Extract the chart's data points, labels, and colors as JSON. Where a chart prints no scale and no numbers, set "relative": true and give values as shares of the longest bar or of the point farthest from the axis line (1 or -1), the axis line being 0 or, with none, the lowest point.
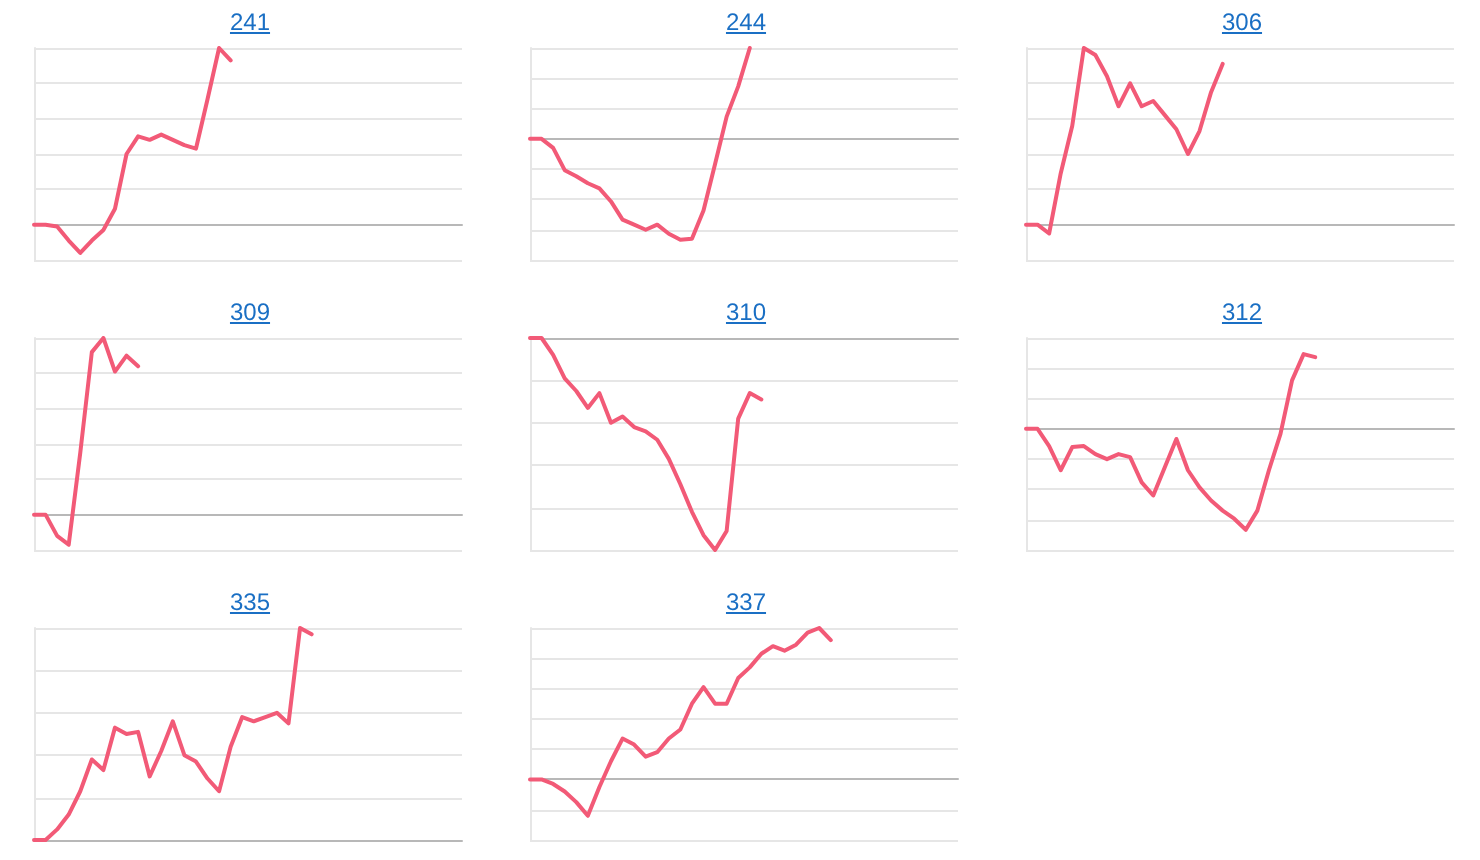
{
  "chart_data": [
    {
      "type": "line",
      "title": "241",
      "relative": true,
      "grid": "y",
      "line_style": "solid",
      "categories": [
        null,
        null,
        null,
        null,
        null,
        null,
        null,
        null,
        null,
        null,
        null,
        null,
        null,
        null,
        null,
        null,
        null,
        null,
        null,
        null,
        null,
        null,
        null,
        null,
        null,
        null,
        null,
        null,
        null,
        null,
        null,
        null,
        null,
        null,
        null,
        null,
        null,
        null
      ],
      "series": [
        {
          "color": "#f25a77",
          "values": [
            0,
            0,
            -0.01,
            -0.09,
            -0.16,
            -0.09,
            -0.03,
            0.09,
            0.4,
            0.5,
            0.48,
            0.51,
            0.48,
            0.45,
            0.43,
            0.71,
            1,
            0.93,
            null,
            null,
            null,
            null,
            null,
            null,
            null,
            null,
            null,
            null,
            null,
            null,
            null,
            null,
            null,
            null,
            null,
            null,
            null,
            null
          ]
        }
      ]
    },
    {
      "type": "line",
      "title": "244",
      "relative": true,
      "grid": "y",
      "line_style": "solid",
      "categories": [
        null,
        null,
        null,
        null,
        null,
        null,
        null,
        null,
        null,
        null,
        null,
        null,
        null,
        null,
        null,
        null,
        null,
        null,
        null,
        null,
        null,
        null,
        null,
        null,
        null,
        null,
        null,
        null,
        null,
        null,
        null,
        null,
        null,
        null,
        null,
        null,
        null,
        null
      ],
      "series": [
        {
          "color": "#f25a77",
          "values": [
            0,
            0,
            -0.09,
            -0.31,
            -0.37,
            -0.44,
            -0.49,
            -0.62,
            -0.8,
            -0.85,
            -0.9,
            -0.85,
            -0.94,
            -1,
            -0.99,
            -0.71,
            -0.25,
            0.22,
            0.52,
            0.9,
            null,
            null,
            null,
            null,
            null,
            null,
            null,
            null,
            null,
            null,
            null,
            null,
            null,
            null,
            null,
            null,
            null,
            null
          ]
        }
      ]
    },
    {
      "type": "line",
      "title": "306",
      "relative": true,
      "grid": "y",
      "line_style": "solid",
      "categories": [
        null,
        null,
        null,
        null,
        null,
        null,
        null,
        null,
        null,
        null,
        null,
        null,
        null,
        null,
        null,
        null,
        null,
        null,
        null,
        null,
        null,
        null,
        null,
        null,
        null,
        null,
        null,
        null,
        null,
        null,
        null,
        null,
        null,
        null,
        null,
        null,
        null,
        null
      ],
      "series": [
        {
          "color": "#f25a77",
          "values": [
            0,
            0,
            -0.05,
            0.29,
            0.56,
            1,
            0.96,
            0.84,
            0.67,
            0.8,
            0.67,
            0.7,
            0.62,
            0.54,
            0.4,
            0.53,
            0.75,
            0.91,
            null,
            null,
            null,
            null,
            null,
            null,
            null,
            null,
            null,
            null,
            null,
            null,
            null,
            null,
            null,
            null,
            null,
            null,
            null,
            null
          ]
        }
      ]
    },
    {
      "type": "line",
      "title": "309",
      "relative": true,
      "grid": "y",
      "line_style": "solid",
      "categories": [
        null,
        null,
        null,
        null,
        null,
        null,
        null,
        null,
        null,
        null,
        null,
        null,
        null,
        null,
        null,
        null,
        null,
        null,
        null,
        null,
        null,
        null,
        null,
        null,
        null,
        null,
        null,
        null,
        null,
        null,
        null,
        null,
        null,
        null,
        null,
        null,
        null,
        null
      ],
      "series": [
        {
          "color": "#f25a77",
          "values": [
            0,
            0,
            -0.12,
            -0.17,
            0.35,
            0.92,
            1,
            0.81,
            0.9,
            0.84,
            null,
            null,
            null,
            null,
            null,
            null,
            null,
            null,
            null,
            null,
            null,
            null,
            null,
            null,
            null,
            null,
            null,
            null,
            null,
            null,
            null,
            null,
            null,
            null,
            null,
            null,
            null,
            null
          ]
        }
      ]
    },
    {
      "type": "line",
      "title": "310",
      "relative": true,
      "grid": "y",
      "line_style": "solid",
      "categories": [
        null,
        null,
        null,
        null,
        null,
        null,
        null,
        null,
        null,
        null,
        null,
        null,
        null,
        null,
        null,
        null,
        null,
        null,
        null,
        null,
        null,
        null,
        null,
        null,
        null,
        null,
        null,
        null,
        null,
        null,
        null,
        null,
        null,
        null,
        null,
        null,
        null,
        null
      ],
      "series": [
        {
          "color": "#f25a77",
          "values": [
            0,
            0,
            -0.08,
            -0.19,
            -0.25,
            -0.33,
            -0.26,
            -0.4,
            -0.37,
            -0.42,
            -0.44,
            -0.48,
            -0.57,
            -0.69,
            -0.82,
            -0.93,
            -1,
            -0.91,
            -0.38,
            -0.26,
            -0.29,
            null,
            null,
            null,
            null,
            null,
            null,
            null,
            null,
            null,
            null,
            null,
            null,
            null,
            null,
            null,
            null,
            null
          ]
        }
      ]
    },
    {
      "type": "line",
      "title": "312",
      "relative": true,
      "grid": "y",
      "line_style": "solid",
      "categories": [
        null,
        null,
        null,
        null,
        null,
        null,
        null,
        null,
        null,
        null,
        null,
        null,
        null,
        null,
        null,
        null,
        null,
        null,
        null,
        null,
        null,
        null,
        null,
        null,
        null,
        null,
        null,
        null,
        null,
        null,
        null,
        null,
        null,
        null,
        null,
        null,
        null,
        null
      ],
      "series": [
        {
          "color": "#f25a77",
          "values": [
            0,
            0,
            -0.17,
            -0.41,
            -0.18,
            -0.17,
            -0.25,
            -0.3,
            -0.25,
            -0.28,
            -0.53,
            -0.66,
            -0.38,
            -0.1,
            -0.41,
            -0.58,
            -0.71,
            -0.81,
            -0.89,
            -1,
            -0.81,
            -0.41,
            -0.05,
            0.48,
            0.74,
            0.71,
            null,
            null,
            null,
            null,
            null,
            null,
            null,
            null,
            null,
            null,
            null,
            null
          ]
        }
      ]
    },
    {
      "type": "line",
      "title": "335",
      "relative": true,
      "grid": "y",
      "line_style": "solid",
      "categories": [
        null,
        null,
        null,
        null,
        null,
        null,
        null,
        null,
        null,
        null,
        null,
        null,
        null,
        null,
        null,
        null,
        null,
        null,
        null,
        null,
        null,
        null,
        null,
        null,
        null,
        null,
        null,
        null,
        null,
        null,
        null,
        null,
        null,
        null,
        null,
        null,
        null,
        null
      ],
      "series": [
        {
          "color": "#f25a77",
          "values": [
            0,
            0,
            0.05,
            0.12,
            0.23,
            0.38,
            0.33,
            0.53,
            0.5,
            0.51,
            0.3,
            0.42,
            0.56,
            0.4,
            0.37,
            0.29,
            0.23,
            0.44,
            0.58,
            0.56,
            0.58,
            0.6,
            0.55,
            1,
            0.97,
            null,
            null,
            null,
            null,
            null,
            null,
            null,
            null,
            null,
            null,
            null,
            null,
            null
          ]
        }
      ]
    },
    {
      "type": "line",
      "title": "337",
      "relative": true,
      "grid": "y",
      "line_style": "solid",
      "categories": [
        null,
        null,
        null,
        null,
        null,
        null,
        null,
        null,
        null,
        null,
        null,
        null,
        null,
        null,
        null,
        null,
        null,
        null,
        null,
        null,
        null,
        null,
        null,
        null,
        null,
        null,
        null,
        null,
        null,
        null,
        null,
        null,
        null,
        null,
        null,
        null,
        null,
        null
      ],
      "series": [
        {
          "color": "#f25a77",
          "values": [
            0,
            0,
            -0.03,
            -0.08,
            -0.15,
            -0.24,
            -0.05,
            0.12,
            0.27,
            0.23,
            0.15,
            0.18,
            0.27,
            0.33,
            0.5,
            0.61,
            0.5,
            0.5,
            0.67,
            0.74,
            0.83,
            0.88,
            0.85,
            0.89,
            0.97,
            1,
            0.92,
            null,
            null,
            null,
            null,
            null,
            null,
            null,
            null,
            null,
            null,
            null
          ]
        }
      ]
    }
  ]
}
